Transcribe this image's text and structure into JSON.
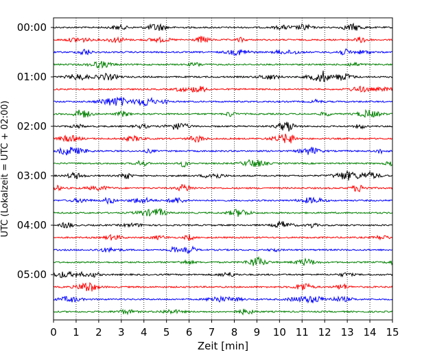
{
  "chart_data": {
    "type": "line",
    "title": "",
    "xlabel": "Zeit  [min]",
    "ylabel": "UTC (Lokalzeit = UTC + 02:00)",
    "xlim": [
      0,
      15
    ],
    "x_ticks": [
      "0",
      "1",
      "2",
      "3",
      "4",
      "5",
      "6",
      "7",
      "8",
      "9",
      "10",
      "11",
      "12",
      "13",
      "14",
      "15"
    ],
    "y_tick_labels": [
      "00:00",
      "01:00",
      "02:00",
      "03:00",
      "04:00",
      "05:00"
    ],
    "grid": "vertical dotted",
    "trace_interval_minutes": 15,
    "trace_colors": [
      "#000000",
      "#ff0000",
      "#0000ff",
      "#008000"
    ],
    "traces": [
      {
        "start": "00:00"
      },
      {
        "start": "00:15"
      },
      {
        "start": "00:30"
      },
      {
        "start": "00:45"
      },
      {
        "start": "01:00"
      },
      {
        "start": "01:15"
      },
      {
        "start": "01:30"
      },
      {
        "start": "01:45"
      },
      {
        "start": "02:00"
      },
      {
        "start": "02:15"
      },
      {
        "start": "02:30"
      },
      {
        "start": "02:45"
      },
      {
        "start": "03:00"
      },
      {
        "start": "03:15"
      },
      {
        "start": "03:30"
      },
      {
        "start": "03:45"
      },
      {
        "start": "04:00"
      },
      {
        "start": "04:15"
      },
      {
        "start": "04:30"
      },
      {
        "start": "04:45"
      },
      {
        "start": "05:00"
      },
      {
        "start": "05:15"
      },
      {
        "start": "05:30"
      },
      {
        "start": "05:45"
      }
    ]
  }
}
